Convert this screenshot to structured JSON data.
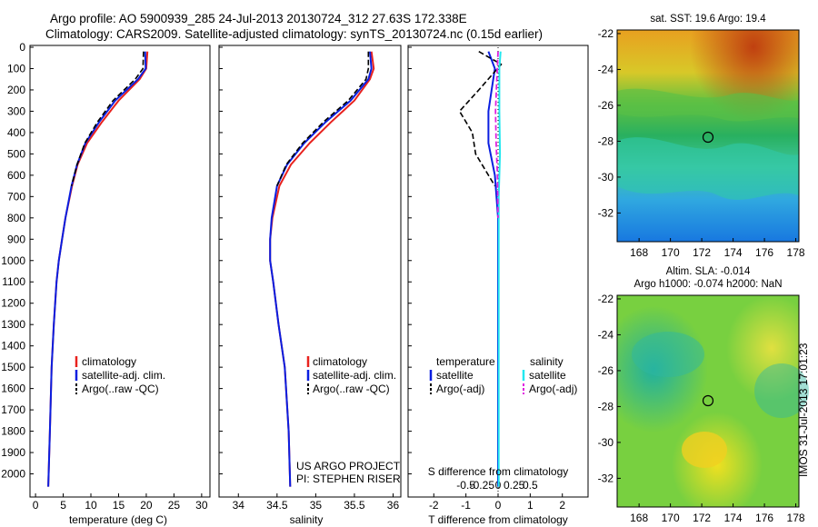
{
  "title_line1": "Argo profile: AO 5900939_285 24-Jul-2013 20130724_312 27.63S 172.338E",
  "title_line2": "Climatology: CARS2009. Satellite-adjusted climatology: synTS_20130724.nc (0.15d earlier)",
  "depth_ticks": [
    "0",
    "100",
    "200",
    "300",
    "400",
    "500",
    "600",
    "700",
    "800",
    "900",
    "1000",
    "1100",
    "1200",
    "1300",
    "1400",
    "1500",
    "1600",
    "1700",
    "1800",
    "1900",
    "2000"
  ],
  "panel1": {
    "xlabel": "temperature (deg C)",
    "xticks": [
      "0",
      "5",
      "10",
      "15",
      "20",
      "25",
      "30"
    ],
    "legend": [
      "climatology",
      "satellite-adj. clim.",
      "Argo(..raw -QC)"
    ]
  },
  "panel2": {
    "xlabel": "salinity",
    "xticks": [
      "34",
      "34.5",
      "35",
      "35.5",
      "36"
    ],
    "legend": [
      "climatology",
      "satellite-adj. clim.",
      "Argo(..raw -QC)"
    ],
    "credit1": "US ARGO PROJECT",
    "credit2": "PI: STEPHEN RISER"
  },
  "panel3": {
    "xlabel": "T difference from climatology",
    "xticks": [
      "-2",
      "-1",
      "0",
      "1",
      "2"
    ],
    "top_label": "S difference from climatology",
    "top_ticks": [
      "-0.5",
      "-0.25",
      "0",
      "0.25",
      "0.5"
    ],
    "legend_t_title": "temperature",
    "legend_s_title": "salinity",
    "legend_t": [
      "satellite",
      "Argo(-adj)"
    ],
    "legend_s": [
      "satellite",
      "Argo(-adj)"
    ]
  },
  "map1": {
    "title": "sat. SST: 19.6 Argo: 19.4",
    "yticks": [
      "-22",
      "-24",
      "-26",
      "-28",
      "-30",
      "-32"
    ],
    "xticks": [
      "168",
      "170",
      "172",
      "174",
      "176",
      "178"
    ]
  },
  "map2": {
    "title1": "Altim. SLA: -0.014",
    "title2": "Argo h1000: -0.074 h2000: NaN",
    "yticks": [
      "-22",
      "-24",
      "-26",
      "-28",
      "-30",
      "-32"
    ],
    "xticks": [
      "168",
      "170",
      "172",
      "174",
      "176",
      "178"
    ]
  },
  "stamp": "IMOS 31-Jul-2013 17:01:23",
  "colors": {
    "climatology": "#e8221e",
    "satellite": "#0a1ee0",
    "argo": "#000000",
    "sal_satellite": "#22e8f0",
    "sal_argo": "#e020e0"
  },
  "chart_data": [
    {
      "type": "line",
      "title": "",
      "xlabel": "temperature (deg C)",
      "ylabel": "",
      "xlim": [
        -1,
        31.5
      ],
      "ylim": [
        2100,
        0
      ],
      "series": [
        {
          "name": "climatology",
          "x": [
            20.2,
            20.0,
            18.8,
            15.0,
            12.0,
            9.3,
            7.6,
            6.6,
            5.4,
            4.8,
            4.2,
            3.8,
            3.3,
            2.9,
            2.6,
            2.3
          ],
          "y": [
            20,
            100,
            150,
            250,
            350,
            450,
            550,
            650,
            800,
            900,
            1000,
            1100,
            1300,
            1500,
            1800,
            2060
          ]
        },
        {
          "name": "satellite-adj. clim.",
          "x": [
            19.8,
            19.9,
            18.5,
            14.4,
            11.5,
            9.0,
            7.5,
            6.5,
            5.4,
            4.8,
            4.2,
            3.8,
            3.3,
            2.9,
            2.6,
            2.3
          ],
          "y": [
            20,
            100,
            150,
            250,
            350,
            450,
            550,
            650,
            800,
            900,
            1000,
            1100,
            1300,
            1500,
            1800,
            2060
          ]
        },
        {
          "name": "Argo(..raw -QC)",
          "x": [
            19.5,
            19.4,
            18.0,
            14.0,
            11.2,
            8.9,
            7.5,
            6.5
          ],
          "y": [
            20,
            100,
            150,
            250,
            350,
            450,
            550,
            650
          ]
        }
      ]
    },
    {
      "type": "line",
      "title": "",
      "xlabel": "salinity",
      "ylabel": "",
      "xlim": [
        33.75,
        36.1
      ],
      "ylim": [
        2100,
        0
      ],
      "series": [
        {
          "name": "climatology",
          "x": [
            35.72,
            35.75,
            35.7,
            35.5,
            35.2,
            34.92,
            34.68,
            34.53,
            34.44,
            34.41,
            34.41,
            34.45,
            34.52,
            34.6,
            34.65,
            34.67
          ],
          "y": [
            20,
            100,
            150,
            250,
            350,
            450,
            550,
            650,
            800,
            900,
            1000,
            1100,
            1300,
            1500,
            1800,
            2060
          ]
        },
        {
          "name": "satellite-adj. clim.",
          "x": [
            35.7,
            35.72,
            35.68,
            35.45,
            35.13,
            34.85,
            34.63,
            34.5,
            34.43,
            34.41,
            34.41,
            34.45,
            34.52,
            34.6,
            34.65,
            34.67
          ],
          "y": [
            20,
            100,
            150,
            250,
            350,
            450,
            550,
            650,
            800,
            900,
            1000,
            1100,
            1300,
            1500,
            1800,
            2060
          ]
        },
        {
          "name": "Argo(..raw -QC)",
          "x": [
            35.68,
            35.68,
            35.65,
            35.42,
            35.1,
            34.83,
            34.62,
            34.5
          ],
          "y": [
            20,
            100,
            150,
            250,
            350,
            450,
            550,
            650
          ]
        }
      ]
    },
    {
      "type": "line",
      "title": "",
      "xlabel": "T difference from climatology",
      "ylabel": "",
      "xlim": [
        -2.8,
        2.8
      ],
      "ylim": [
        2100,
        0
      ],
      "series": [
        {
          "name": "temperature satellite",
          "x": [
            -0.3,
            -0.1,
            -0.2,
            -0.3,
            -0.3,
            -0.1,
            0,
            0,
            0,
            0
          ],
          "y": [
            20,
            100,
            200,
            300,
            450,
            600,
            800,
            1200,
            1600,
            2060
          ]
        },
        {
          "name": "temperature Argo(-adj)",
          "x": [
            -0.6,
            0.1,
            -0.6,
            -1.2,
            -0.8,
            -0.7,
            -0.1
          ],
          "y": [
            20,
            80,
            200,
            300,
            400,
            500,
            650
          ]
        },
        {
          "name": "salinity satellite",
          "x": [
            0.04,
            0.02,
            0.02,
            0.03,
            0.01,
            0.01,
            0.01,
            0.01
          ],
          "y": [
            20,
            100,
            300,
            500,
            700,
            1000,
            1500,
            2060
          ]
        },
        {
          "name": "salinity Argo(-adj)",
          "x": [
            0.0,
            -0.02,
            -0.04,
            -0.03,
            -0.01,
            0.0
          ],
          "y": [
            20,
            150,
            300,
            450,
            600,
            800
          ]
        }
      ]
    }
  ]
}
